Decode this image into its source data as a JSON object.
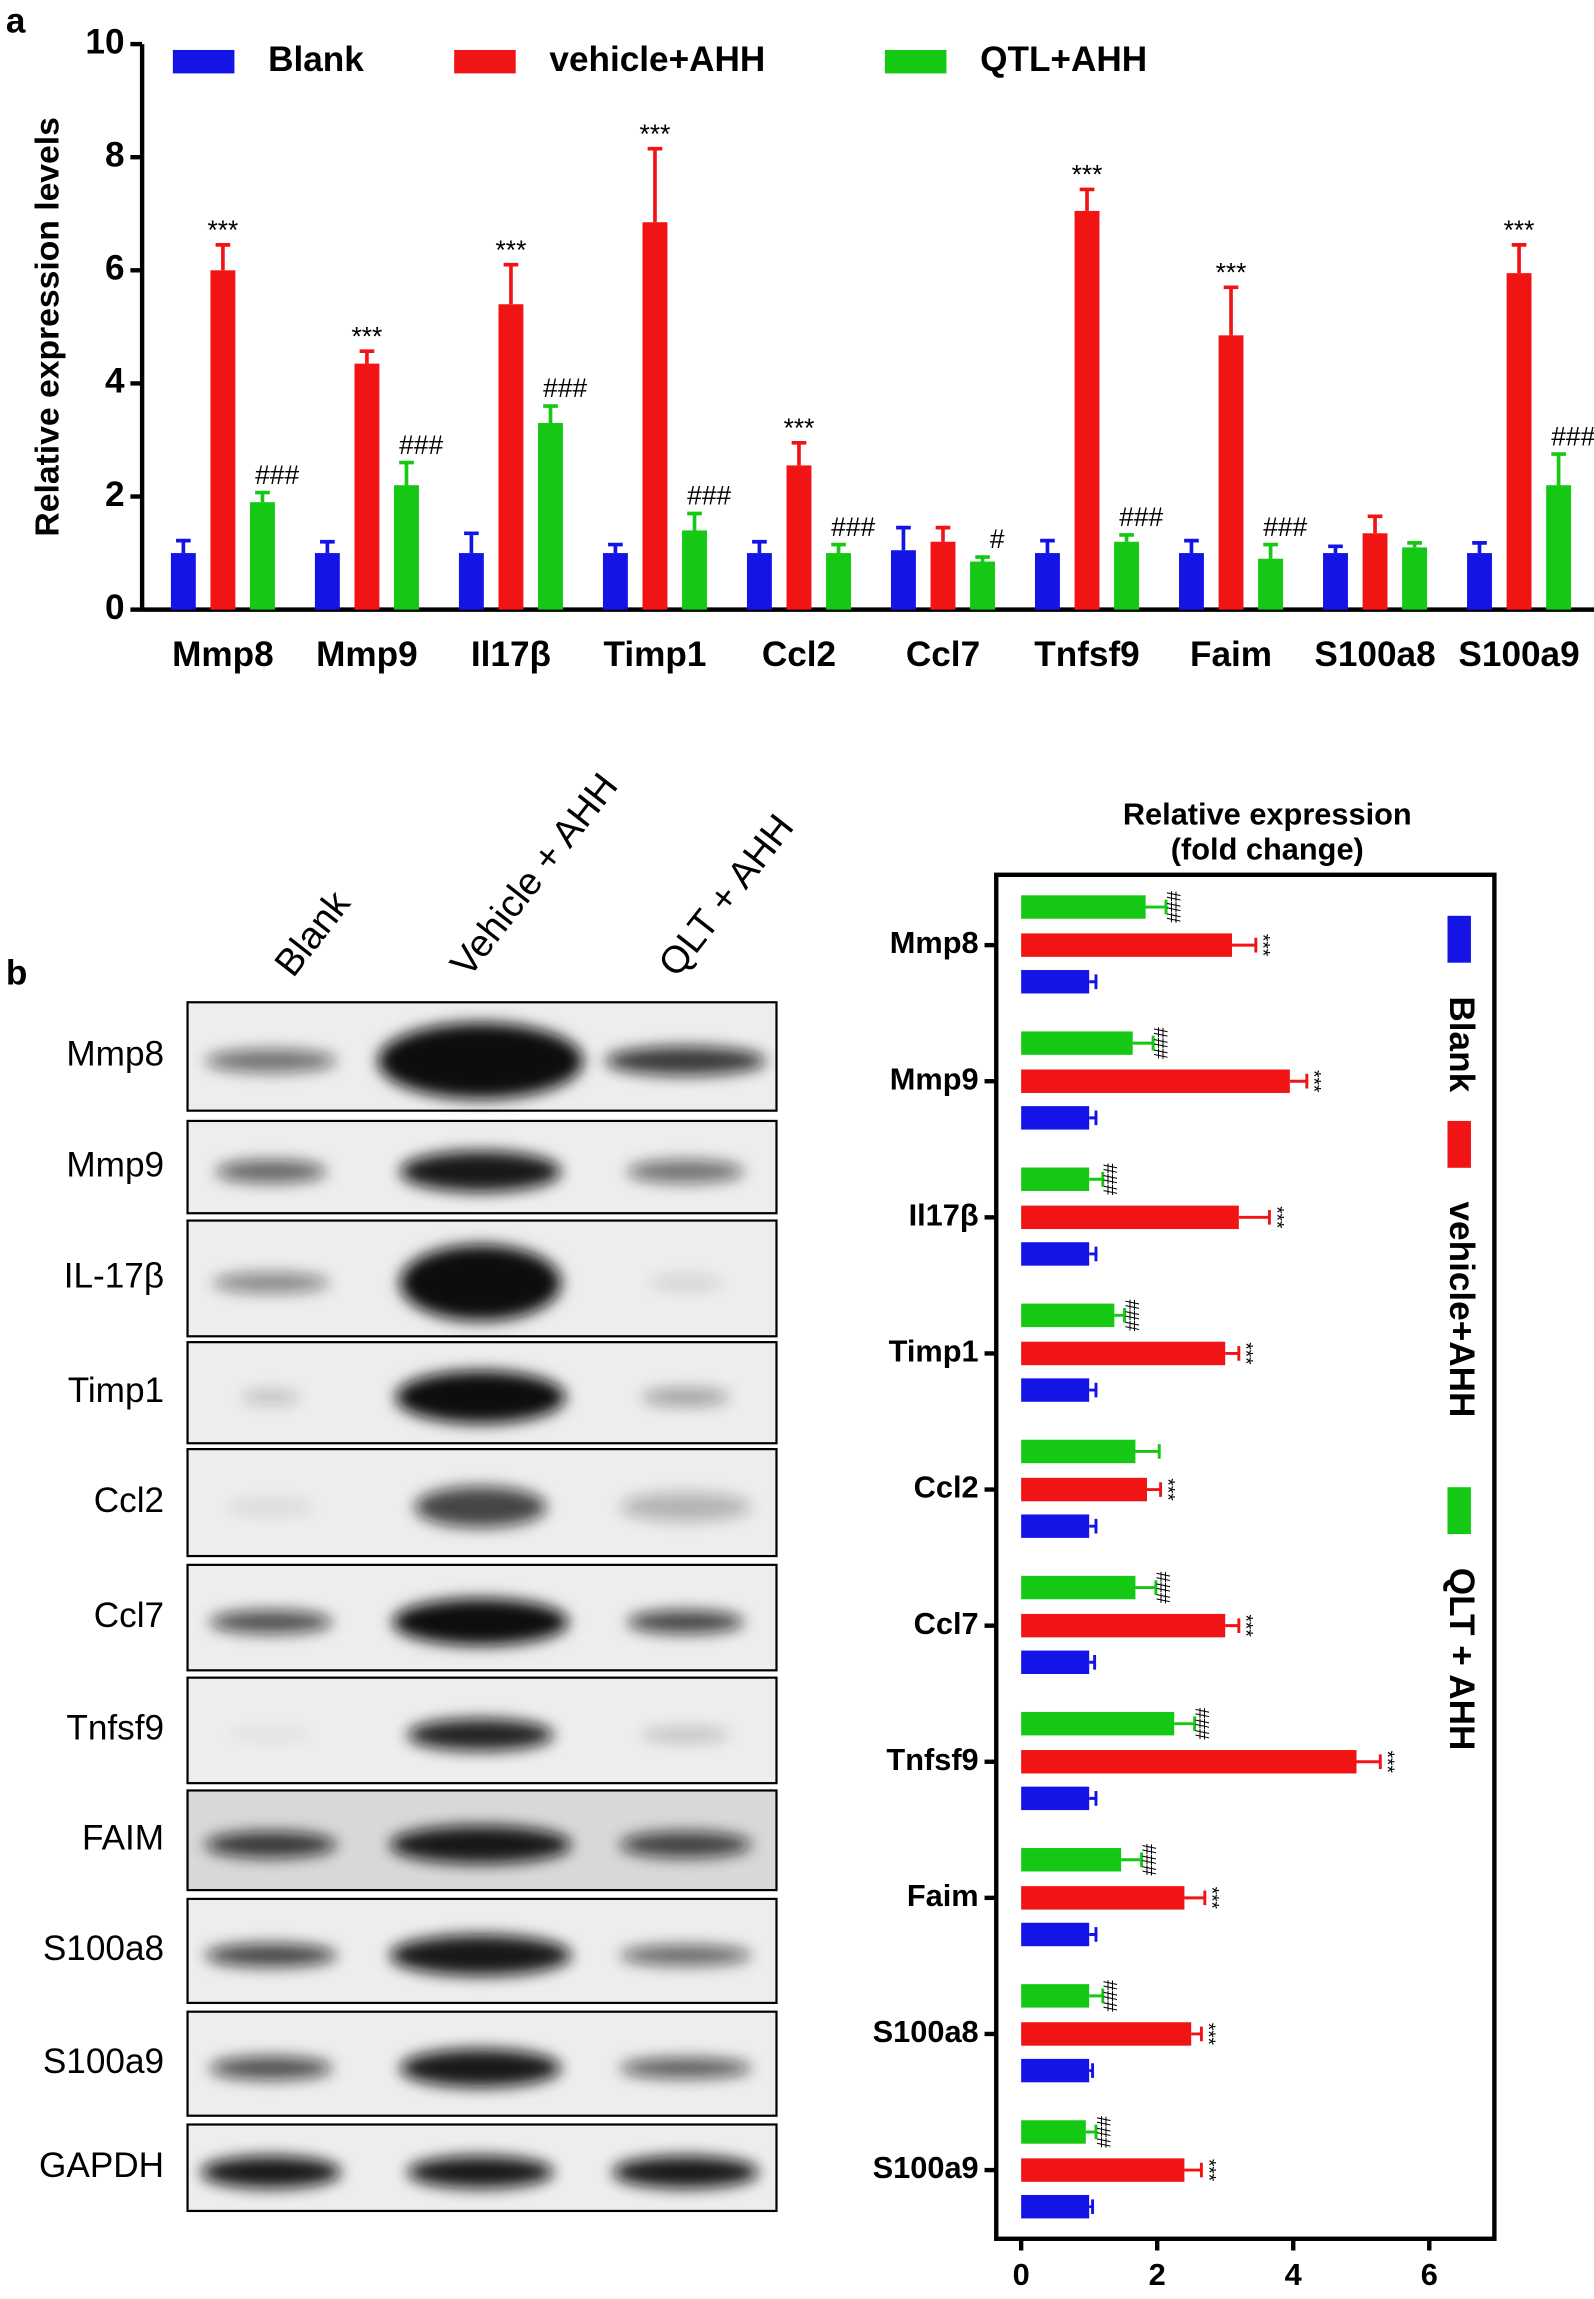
{
  "panel_labels": [
    "a",
    "b"
  ],
  "blot": {
    "columns": [
      "Blank",
      "Vehicle + AHH",
      "QLT + AHH"
    ],
    "rows": [
      "Mmp8",
      "Mmp9",
      "IL-17β",
      "Timp1",
      "Ccl2",
      "Ccl7",
      "Tnfsf9",
      "FAIM",
      "S100a8",
      "S100a9",
      "GAPDH"
    ]
  },
  "chart_data": [
    {
      "type": "bar",
      "y_label": "Relative expression levels",
      "categories": [
        "Mmp8",
        "Mmp9",
        "Il17β",
        "Timp1",
        "Ccl2",
        "Ccl7",
        "Tnfsf9",
        "Faim",
        "S100a8",
        "S100a9"
      ],
      "ylim": [
        0,
        10
      ],
      "yticks": [
        0,
        2,
        4,
        6,
        8,
        10
      ],
      "legend": "top",
      "series": [
        {
          "name": "Blank",
          "color": "#1414e6",
          "values": [
            1,
            1,
            1,
            1,
            1,
            1.05,
            1,
            1,
            1,
            1
          ],
          "errors": [
            0.22,
            0.2,
            0.35,
            0.15,
            0.2,
            0.4,
            0.22,
            0.22,
            0.12,
            0.18
          ],
          "annotations": [
            null,
            null,
            null,
            null,
            null,
            null,
            null,
            null,
            null,
            null
          ]
        },
        {
          "name": "vehicle+AHH",
          "color": "#f01414",
          "values": [
            6.0,
            4.35,
            5.4,
            6.85,
            2.55,
            1.2,
            7.05,
            4.85,
            1.35,
            5.95
          ],
          "errors": [
            0.45,
            0.22,
            0.7,
            1.3,
            0.4,
            0.25,
            0.38,
            0.85,
            0.3,
            0.5
          ],
          "annotations": [
            "***",
            "***",
            "***",
            "***",
            "***",
            null,
            "***",
            "***",
            null,
            "***"
          ]
        },
        {
          "name": "QTL+AHH",
          "color": "#14c814",
          "values": [
            1.9,
            2.2,
            3.3,
            1.4,
            1.0,
            0.85,
            1.2,
            0.9,
            1.1,
            2.2
          ],
          "errors": [
            0.17,
            0.4,
            0.3,
            0.3,
            0.15,
            0.08,
            0.12,
            0.25,
            0.08,
            0.55
          ],
          "annotations": [
            "###",
            "###",
            "###",
            "###",
            "###",
            "#",
            "###",
            "###",
            null,
            "###"
          ]
        }
      ]
    },
    {
      "type": "barh",
      "title": [
        "Relative expression",
        "(fold change)"
      ],
      "categories": [
        "Mmp8",
        "Mmp9",
        "Il17β",
        "Timp1",
        "Ccl2",
        "Ccl7",
        "Tnfsf9",
        "Faim",
        "S100a8",
        "S100a9"
      ],
      "xlim": [
        0,
        7
      ],
      "xticks": [
        0,
        2,
        4,
        6
      ],
      "legend": "right",
      "series": [
        {
          "name": "Blank",
          "color": "#1414e6",
          "values": [
            1,
            1,
            1,
            1,
            1,
            1,
            1,
            1,
            1,
            1
          ],
          "errors": [
            0.1,
            0.1,
            0.1,
            0.1,
            0.1,
            0.08,
            0.1,
            0.1,
            0.05,
            0.05
          ],
          "annotations": [
            null,
            null,
            null,
            null,
            null,
            null,
            null,
            null,
            null,
            null
          ]
        },
        {
          "name": "vehicle+AHH",
          "color": "#f01414",
          "values": [
            3.1,
            3.95,
            3.2,
            3.0,
            1.85,
            3.0,
            4.93,
            2.4,
            2.5,
            2.4
          ],
          "errors": [
            0.35,
            0.25,
            0.45,
            0.2,
            0.2,
            0.2,
            0.35,
            0.3,
            0.15,
            0.25
          ],
          "annotations": [
            "***",
            "***",
            "***",
            "***",
            "***",
            "***",
            "***",
            "***",
            "***",
            "***"
          ]
        },
        {
          "name": "QLT + AHH",
          "color": "#14c814",
          "values": [
            1.83,
            1.64,
            1.0,
            1.37,
            1.68,
            1.68,
            2.25,
            1.47,
            1.0,
            0.95
          ],
          "errors": [
            0.3,
            0.3,
            0.2,
            0.15,
            0.35,
            0.3,
            0.3,
            0.3,
            0.2,
            0.15
          ],
          "annotations": [
            "###",
            "###",
            "###",
            "###",
            null,
            "###",
            "###",
            "###",
            "###",
            "###"
          ]
        }
      ]
    }
  ]
}
